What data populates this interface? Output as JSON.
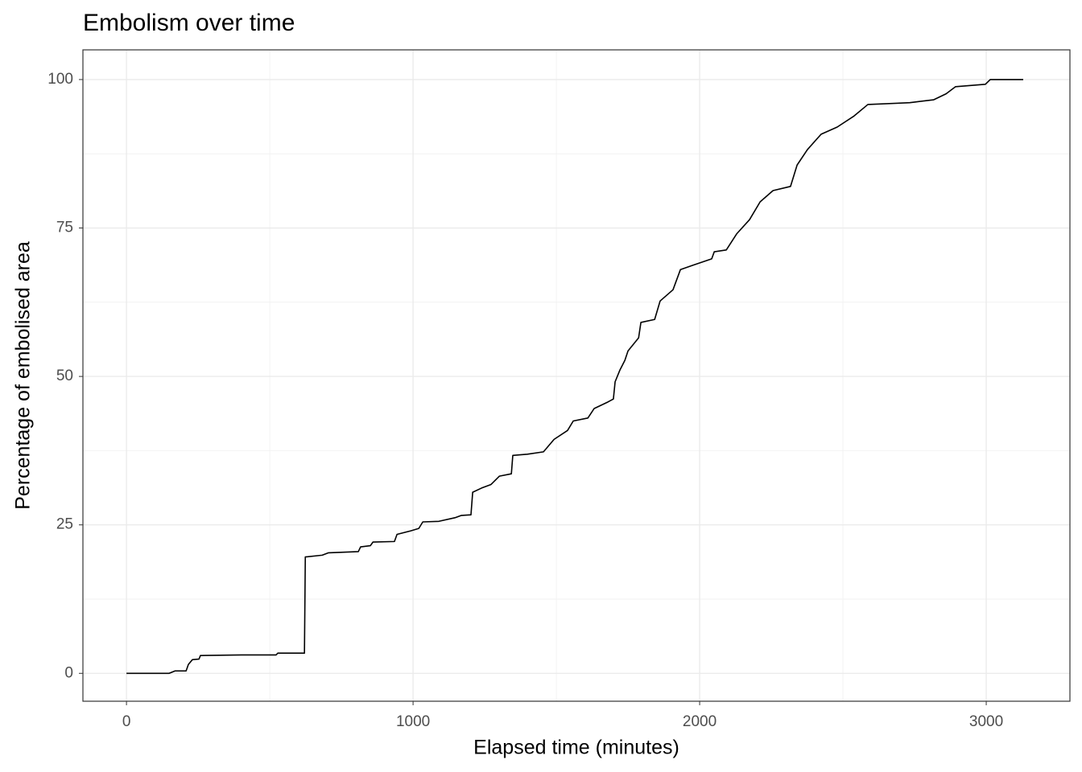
{
  "chart_data": {
    "type": "line",
    "title": "Embolism over time",
    "x_label": "Elapsed time (minutes)",
    "y_label": "Percentage of embolised area",
    "x": [
      0,
      149,
      169,
      208,
      216,
      230,
      253,
      258,
      402,
      522,
      528,
      621,
      624,
      683,
      705,
      809,
      817,
      851,
      860,
      935,
      944,
      992,
      1020,
      1034,
      1090,
      1146,
      1169,
      1202,
      1208,
      1239,
      1272,
      1301,
      1343,
      1348,
      1399,
      1455,
      1492,
      1539,
      1559,
      1610,
      1632,
      1680,
      1699,
      1705,
      1722,
      1739,
      1750,
      1787,
      1795,
      1843,
      1862,
      1907,
      1933,
      1975,
      2042,
      2051,
      2093,
      2129,
      2174,
      2211,
      2256,
      2317,
      2340,
      2376,
      2424,
      2480,
      2537,
      2587,
      2733,
      2817,
      2860,
      2893,
      2997,
      3014,
      3129
    ],
    "values": [
      0,
      0,
      0.4,
      0.4,
      1.5,
      2.3,
      2.4,
      3.0,
      3.1,
      3.1,
      3.4,
      3.4,
      19.6,
      19.9,
      20.3,
      20.5,
      21.3,
      21.5,
      22.1,
      22.2,
      23.4,
      24.0,
      24.4,
      25.5,
      25.6,
      26.2,
      26.6,
      26.7,
      30.5,
      31.2,
      31.8,
      33.2,
      33.6,
      36.7,
      36.9,
      37.3,
      39.4,
      40.9,
      42.5,
      43.0,
      44.6,
      45.7,
      46.2,
      49.1,
      51.1,
      52.7,
      54.3,
      56.5,
      59.1,
      59.6,
      62.7,
      64.6,
      68.0,
      68.7,
      69.8,
      71.0,
      71.3,
      74.0,
      76.4,
      79.4,
      81.3,
      82.0,
      85.6,
      88.2,
      90.8,
      92.0,
      93.8,
      95.8,
      96.1,
      96.6,
      97.6,
      98.8,
      99.2,
      100,
      100
    ],
    "color": "#000000",
    "xlim": [
      -152,
      3292
    ],
    "ylim": [
      -4.7,
      105
    ],
    "xticks": [
      0,
      1000,
      2000,
      3000
    ],
    "yticks": [
      0,
      25,
      50,
      75,
      100
    ],
    "x_minor_ticks": [
      500,
      1500,
      2500
    ],
    "y_minor_ticks": [
      12.5,
      37.5,
      62.5,
      87.5
    ],
    "grid": true
  }
}
